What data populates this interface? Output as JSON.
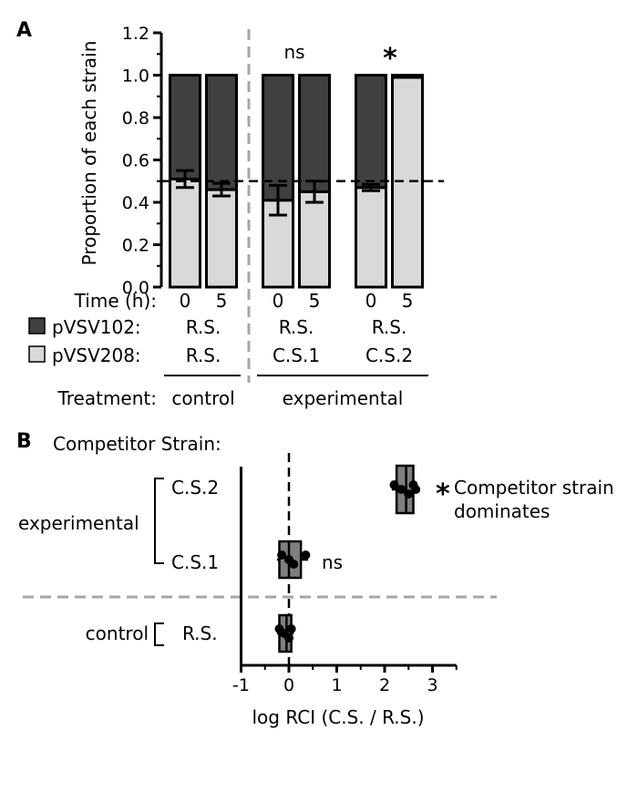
{
  "panel_a": {
    "letter": "A",
    "row_labels": {
      "time": "Time (h):",
      "dark": "pVSV102:",
      "light": "pVSV208:",
      "treatment": "Treatment:"
    },
    "groups": [
      {
        "dark_strain": "R.S.",
        "light_strain": "R.S.",
        "annotation": ""
      },
      {
        "dark_strain": "R.S.",
        "light_strain": "C.S.1",
        "annotation": "ns"
      },
      {
        "dark_strain": "R.S.",
        "light_strain": "C.S.2",
        "annotation": "*"
      }
    ],
    "treatments": [
      "control",
      "experimental"
    ]
  },
  "panel_b": {
    "letter": "B",
    "title": "Competitor Strain:",
    "group_labels": [
      "experimental",
      "control"
    ],
    "rows": [
      {
        "label": "C.S.2",
        "annotation": "*",
        "annotation_text_1": "Competitor strain",
        "annotation_text_2": "dominates"
      },
      {
        "label": "C.S.1",
        "annotation": "ns",
        "annotation_text_1": "",
        "annotation_text_2": ""
      },
      {
        "label": "R.S.",
        "annotation": "",
        "annotation_text_1": "",
        "annotation_text_2": ""
      }
    ]
  },
  "chart_data": [
    {
      "type": "bar",
      "stacked": true,
      "ylabel": "Proportion of each strain",
      "ylim": [
        0,
        1.2
      ],
      "yticks": [
        "0.0",
        "0.2",
        "0.4",
        "0.6",
        "0.8",
        "1.0",
        "1.2"
      ],
      "categories": [
        "0",
        "5",
        "0",
        "5",
        "0",
        "5"
      ],
      "series": [
        {
          "name": "pVSV208",
          "color": "#d9d9d9",
          "values": [
            0.51,
            0.46,
            0.41,
            0.45,
            0.47,
            0.99
          ],
          "error": [
            0.04,
            0.03,
            0.07,
            0.05,
            0.015,
            0.0
          ]
        },
        {
          "name": "pVSV102",
          "color": "#404040",
          "values": [
            0.49,
            0.54,
            0.59,
            0.55,
            0.53,
            0.01
          ]
        }
      ],
      "reference_line": 0.5
    },
    {
      "type": "box",
      "orientation": "horizontal",
      "xlabel": "log RCI (C.S. / R.S.)",
      "xlim": [
        -1,
        3.5
      ],
      "xticks": [
        "-1",
        "0",
        "1",
        "2",
        "3"
      ],
      "categories": [
        "C.S.2",
        "C.S.1",
        "R.S."
      ],
      "boxes": [
        {
          "q1": 2.25,
          "median": 2.45,
          "q3": 2.6,
          "min": 2.15,
          "max": 2.7,
          "points": [
            2.2,
            2.35,
            2.5,
            2.6,
            2.65
          ]
        },
        {
          "q1": -0.2,
          "median": 0.0,
          "q3": 0.25,
          "min": -0.25,
          "max": 0.4,
          "points": [
            -0.15,
            0.0,
            0.1,
            0.35
          ]
        },
        {
          "q1": -0.2,
          "median": -0.05,
          "q3": 0.05,
          "min": -0.25,
          "max": 0.1,
          "points": [
            -0.2,
            -0.1,
            0.0,
            0.05
          ]
        }
      ],
      "reference_line": 0
    }
  ]
}
